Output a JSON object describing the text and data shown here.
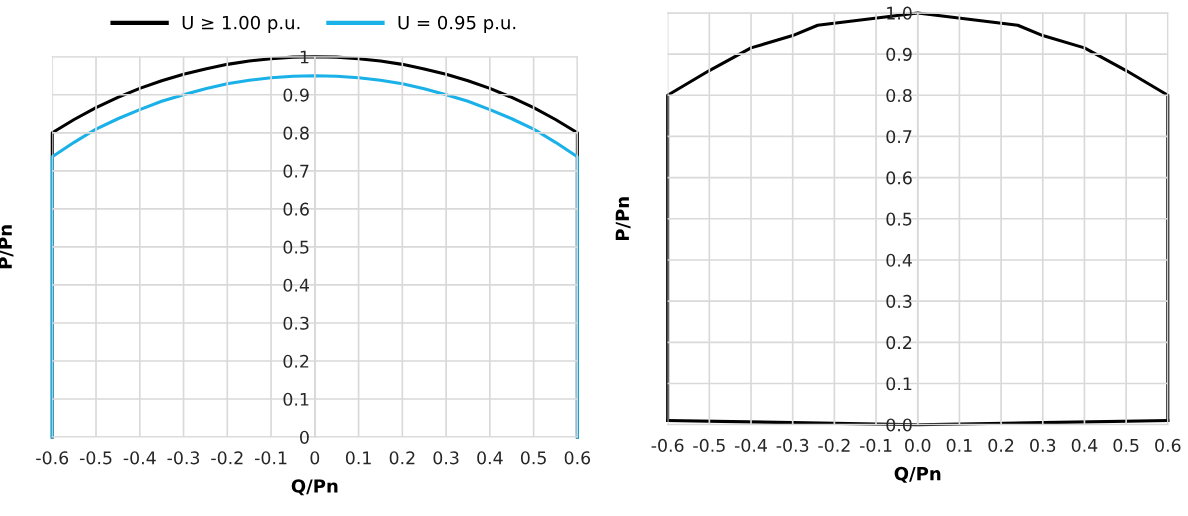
{
  "chart_data": [
    {
      "type": "line",
      "xlabel": "Q/Pn",
      "ylabel": "P/Pn",
      "xlim": [
        -0.6,
        0.6
      ],
      "ylim": [
        0,
        1
      ],
      "xticks": [
        -0.6,
        -0.5,
        -0.4,
        -0.3,
        -0.2,
        -0.1,
        0,
        0.1,
        0.2,
        0.3,
        0.4,
        0.5,
        0.6
      ],
      "yticks": [
        0,
        0.1,
        0.2,
        0.3,
        0.4,
        0.5,
        0.6,
        0.7,
        0.8,
        0.9,
        1
      ],
      "grid": true,
      "legend": "top",
      "marker": "none",
      "line_style": "solid",
      "series": [
        {
          "name": "U ≥ 1.00 p.u.",
          "color": "#000000",
          "x": [
            -0.6,
            -0.6,
            -0.55,
            -0.5,
            -0.45,
            -0.4,
            -0.35,
            -0.3,
            -0.25,
            -0.2,
            -0.15,
            -0.1,
            -0.05,
            0,
            0.05,
            0.1,
            0.15,
            0.2,
            0.25,
            0.3,
            0.35,
            0.4,
            0.45,
            0.5,
            0.55,
            0.6,
            0.6
          ],
          "values": [
            0,
            0.8,
            0.835,
            0.866,
            0.893,
            0.917,
            0.937,
            0.954,
            0.968,
            0.98,
            0.989,
            0.995,
            0.999,
            1,
            0.999,
            0.995,
            0.989,
            0.98,
            0.968,
            0.954,
            0.937,
            0.917,
            0.893,
            0.866,
            0.835,
            0.8,
            0
          ]
        },
        {
          "name": "U = 0.95 p.u.",
          "color": "#1ab0e8",
          "x": [
            -0.6,
            -0.6,
            -0.55,
            -0.5,
            -0.45,
            -0.4,
            -0.35,
            -0.3,
            -0.25,
            -0.2,
            -0.15,
            -0.1,
            -0.05,
            0,
            0.05,
            0.1,
            0.15,
            0.2,
            0.25,
            0.3,
            0.35,
            0.4,
            0.45,
            0.5,
            0.55,
            0.6,
            0.6
          ],
          "values": [
            0,
            0.737,
            0.775,
            0.81,
            0.837,
            0.861,
            0.883,
            0.9,
            0.916,
            0.929,
            0.938,
            0.945,
            0.949,
            0.95,
            0.949,
            0.945,
            0.938,
            0.929,
            0.916,
            0.9,
            0.883,
            0.861,
            0.837,
            0.81,
            0.775,
            0.737,
            0
          ]
        }
      ]
    },
    {
      "type": "line",
      "xlabel": "Q/Pn",
      "ylabel": "P/Pn",
      "xlim": [
        -0.6,
        0.6
      ],
      "ylim": [
        0,
        1
      ],
      "xticks": [
        -0.6,
        -0.5,
        -0.4,
        -0.3,
        -0.2,
        -0.1,
        {
          "value": 0,
          "label": "0.0"
        },
        0.1,
        0.2,
        0.3,
        0.4,
        0.5,
        0.6
      ],
      "yticks": [
        {
          "value": 0,
          "label": "0.0"
        },
        0.1,
        0.2,
        0.3,
        0.4,
        0.5,
        0.6,
        0.7,
        0.8,
        0.9,
        {
          "value": 1,
          "label": "1.0"
        }
      ],
      "grid": true,
      "marker": "none",
      "line_style": "solid",
      "series": [
        {
          "color": "#000000",
          "x": [
            -0.6,
            -0.6,
            -0.5,
            -0.4,
            -0.3,
            -0.24,
            0,
            0.24,
            0.3,
            0.4,
            0.5,
            0.6,
            0.6
          ],
          "values": [
            0.01,
            0.8,
            0.86,
            0.915,
            0.945,
            0.97,
            1,
            0.97,
            0.945,
            0.915,
            0.86,
            0.8,
            0.01
          ]
        },
        {
          "color": "#000000",
          "x": [
            -0.6,
            -0.3,
            0,
            0.3,
            0.6
          ],
          "values": [
            0.01,
            0.005,
            0,
            0.005,
            0.01
          ]
        }
      ]
    }
  ]
}
